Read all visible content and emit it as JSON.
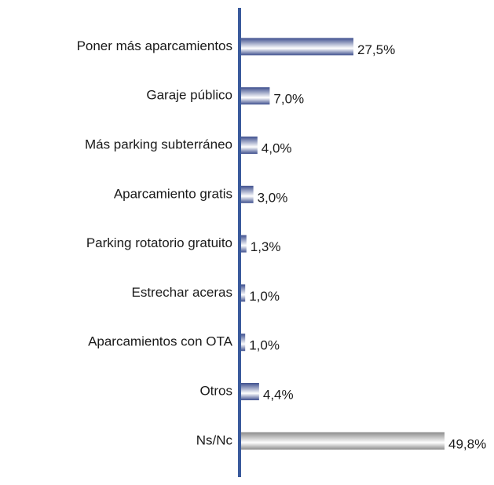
{
  "chart_data": {
    "type": "bar",
    "orientation": "horizontal",
    "categories": [
      "Poner más aparcamientos",
      "Garaje público",
      "Más parking subterráneo",
      "Aparcamiento gratis",
      "Parking rotatorio gratuito",
      "Estrechar aceras",
      "Aparcamientos con OTA",
      "Otros",
      "Ns/Nc"
    ],
    "values": [
      27.5,
      7.0,
      4.0,
      3.0,
      1.3,
      1.0,
      1.0,
      4.4,
      49.8
    ],
    "value_labels": [
      "27,5%",
      "7,0%",
      "4,0%",
      "3,0%",
      "1,3%",
      "1,0%",
      "1,0%",
      "4,4%",
      "49,8%"
    ],
    "colors": [
      "#3e4f8e",
      "#3e4f8e",
      "#3e4f8e",
      "#3e4f8e",
      "#3e4f8e",
      "#3e4f8e",
      "#3e4f8e",
      "#3e4f8e",
      "#8c8c8c"
    ],
    "axis_color": "#3a5a9c"
  }
}
